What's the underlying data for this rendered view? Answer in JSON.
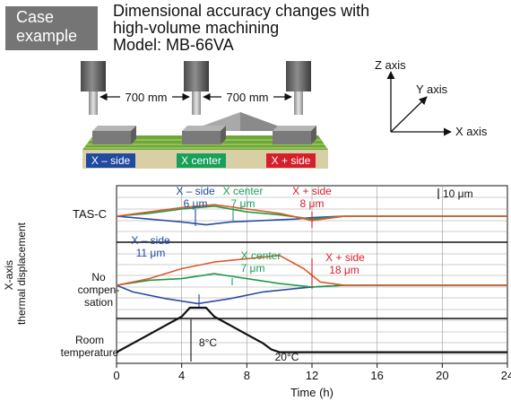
{
  "badge": {
    "line1": "Case",
    "line2": "example"
  },
  "title": {
    "line1": "Dimensional accuracy changes with",
    "line2": "high-volume machining",
    "line3": "Model: MB-66VA"
  },
  "machine": {
    "distance_left": "700 mm",
    "distance_right": "700 mm",
    "position_labels": [
      {
        "text": "X – side",
        "color": "#1f4aa0"
      },
      {
        "text": "X center",
        "color": "#17a05a"
      },
      {
        "text": "X + side",
        "color": "#d5202c"
      }
    ]
  },
  "axes_icon": {
    "z": "Z axis",
    "y": "Y axis",
    "x": "X axis"
  },
  "colors": {
    "x_minus": "#2c4da0",
    "x_center": "#1f9a4a",
    "x_plus": "#e0592a",
    "temperature": "#111111",
    "label_minus": "#1f4aa0",
    "label_center": "#17a05a",
    "label_plus": "#d5202c"
  },
  "chart_data": {
    "type": "line",
    "xlabel": "Time (h)",
    "ylabel": "X-axis thermal displacement",
    "xlim": [
      0,
      24
    ],
    "xticks": [
      0,
      4,
      8,
      12,
      16,
      20,
      24
    ],
    "grid": true,
    "scale_bar": "10 μm",
    "panels": [
      {
        "name": "TAS-C",
        "annotations": [
          {
            "label": "X – side",
            "value": "6 μm",
            "color": "#1f4aa0"
          },
          {
            "label": "X center",
            "value": "7 μm",
            "color": "#17a05a"
          },
          {
            "label": "X + side",
            "value": "8 μm",
            "color": "#d5202c"
          }
        ],
        "series": [
          {
            "key": "x_minus",
            "x": [
              0,
              2,
              4,
              5.5,
              7,
              9,
              11,
              12,
              14,
              18,
              24
            ],
            "y": [
              0,
              -2,
              -4,
              -6,
              -4,
              -3,
              -2,
              -1,
              0,
              0,
              0
            ]
          },
          {
            "key": "x_center",
            "x": [
              0,
              2,
              4,
              6,
              8,
              10,
              12,
              14,
              18,
              24
            ],
            "y": [
              0,
              2,
              5,
              7,
              3,
              1,
              -2,
              0,
              0,
              0
            ]
          },
          {
            "key": "x_plus",
            "x": [
              0,
              2,
              4,
              6,
              8,
              10,
              12,
              14,
              18,
              24
            ],
            "y": [
              0,
              3,
              6,
              8,
              5,
              2,
              -3,
              0,
              0,
              0
            ]
          }
        ]
      },
      {
        "name": "No compen- sation",
        "annotations": [
          {
            "label": "X – side",
            "value": "11 μm",
            "color": "#1f4aa0"
          },
          {
            "label": "X center",
            "value": "7 μm",
            "color": "#17a05a"
          },
          {
            "label": "X + side",
            "value": "18 μm",
            "color": "#d5202c"
          }
        ],
        "series": [
          {
            "key": "x_minus",
            "x": [
              0,
              1,
              3,
              5,
              7,
              9,
              11,
              12,
              14,
              24
            ],
            "y": [
              0,
              -4,
              -8,
              -11,
              -8,
              -4,
              -2,
              -1,
              0,
              0
            ]
          },
          {
            "key": "x_center",
            "x": [
              0,
              2,
              4,
              6,
              8,
              10,
              12,
              14,
              24
            ],
            "y": [
              0,
              3,
              4,
              7,
              4,
              1,
              -1,
              0,
              0
            ]
          },
          {
            "key": "x_plus",
            "x": [
              0,
              2,
              4,
              6,
              8,
              10,
              11.5,
              12.5,
              14,
              24
            ],
            "y": [
              0,
              4,
              10,
              14,
              16,
              18,
              10,
              2,
              0,
              0
            ]
          }
        ]
      },
      {
        "name": "Room temperature",
        "annotations": [
          {
            "label": "",
            "value": "8°C",
            "color": "#111111"
          },
          {
            "label": "",
            "value": "20°C",
            "color": "#111111"
          }
        ],
        "series": [
          {
            "key": "temperature",
            "x": [
              0,
              1,
              2,
              3,
              4,
              4.5,
              5.5,
              6,
              7,
              8,
              9,
              9.5,
              10,
              24
            ],
            "y": [
              20,
              21.6,
              23.2,
              24.8,
              26.4,
              28,
              28,
              26.4,
              24.8,
              23.2,
              21.6,
              20.5,
              20,
              20
            ]
          }
        ]
      }
    ]
  }
}
